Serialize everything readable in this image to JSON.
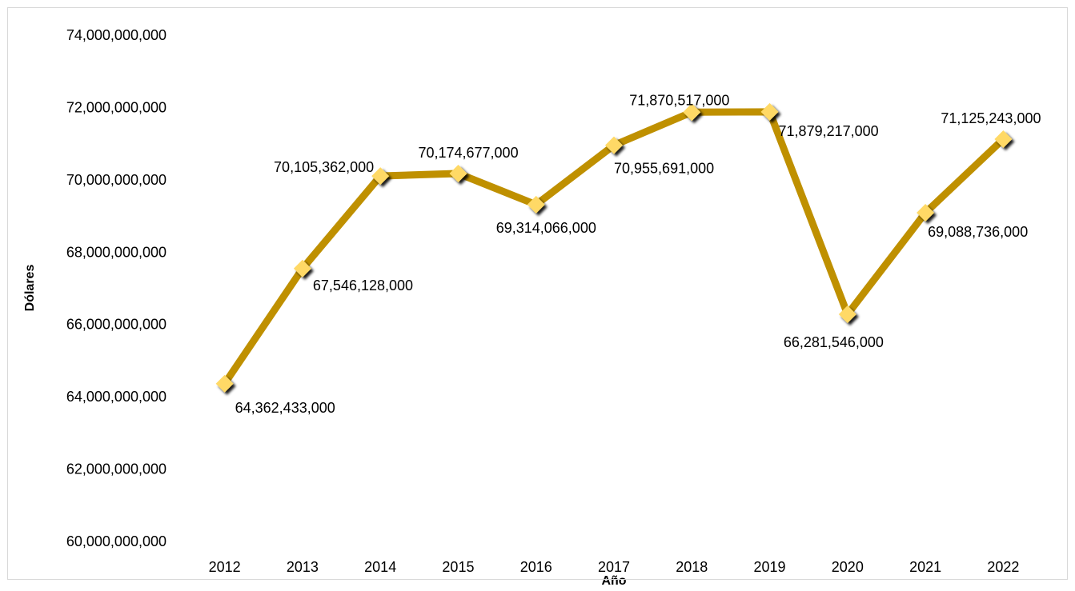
{
  "chart_data": {
    "type": "line",
    "title": "",
    "xlabel": "Año",
    "ylabel": "Dólares",
    "categories": [
      "2012",
      "2013",
      "2014",
      "2015",
      "2016",
      "2017",
      "2018",
      "2019",
      "2020",
      "2021",
      "2022"
    ],
    "series": [
      {
        "values": [
          64362433000,
          67546128000,
          70105362000,
          70174677000,
          69314066000,
          70955691000,
          71870517000,
          71879217000,
          66281546000,
          69088736000,
          71125243000
        ],
        "labels": [
          "64,362,433,000",
          "67,546,128,000",
          "70,105,362,000",
          "70,174,677,000",
          "69,314,066,000",
          "70,955,691,000",
          "71,870,517,000",
          "71,879,217,000",
          "66,281,546,000",
          "69,088,736,000",
          "71,125,243,000"
        ]
      }
    ],
    "ylim": [
      60000000000,
      74000000000
    ],
    "yticks": [
      60000000000,
      62000000000,
      64000000000,
      66000000000,
      68000000000,
      70000000000,
      72000000000,
      74000000000
    ],
    "ytick_labels": [
      "60,000,000,000",
      "62,000,000,000",
      "64,000,000,000",
      "66,000,000,000",
      "68,000,000,000",
      "70,000,000,000",
      "72,000,000,000",
      "74,000,000,000"
    ],
    "grid": false,
    "legend": "none",
    "colors": {
      "line": "#bf9000",
      "marker": "#ffd966",
      "shadow": "#000000"
    }
  }
}
